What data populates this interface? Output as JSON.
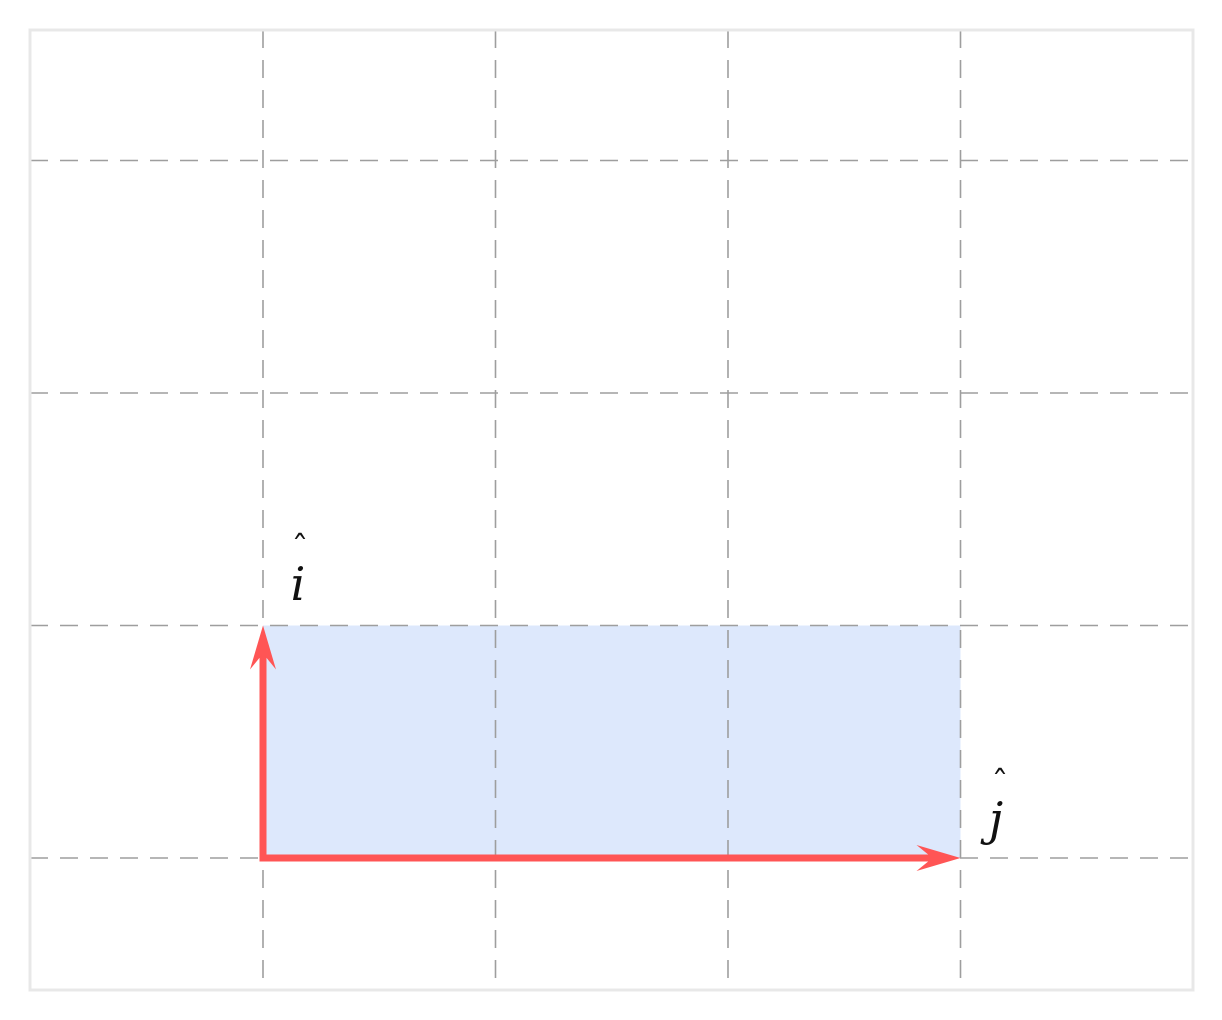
{
  "diagram": {
    "vectors": [
      {
        "name": "i",
        "label": "i",
        "hat": "ˆ",
        "direction": "up",
        "length": 1,
        "color": "#ff5555"
      },
      {
        "name": "j",
        "label": "j",
        "hat": "ˆ",
        "direction": "right",
        "length": 3,
        "color": "#ff5555"
      }
    ],
    "region": {
      "width_units": 3,
      "height_units": 1,
      "color": "#dde8fc"
    },
    "grid": {
      "on": true,
      "style": "dashed",
      "color": "#9e9e9e"
    },
    "frame_color": "#e8e8e8"
  }
}
